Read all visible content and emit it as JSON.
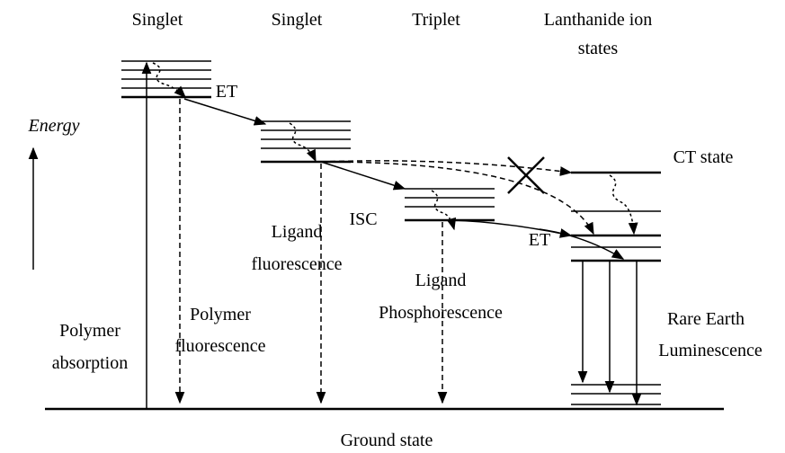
{
  "columns": [
    "Singlet",
    "Singlet",
    "Triplet",
    [
      "Lanthanide ion",
      "states"
    ]
  ],
  "axis_label": "Energy",
  "transitions": {
    "et_1": "ET",
    "isc": "ISC",
    "et_2": "ET"
  },
  "states": {
    "ct": "CT state",
    "ground": "Ground state"
  },
  "processes": {
    "polymer_absorption": [
      "Polymer",
      "absorption"
    ],
    "polymer_fluorescence": [
      "Polymer",
      "fluorescence"
    ],
    "ligand_fluorescence": [
      "Ligand",
      "fluorescence"
    ],
    "ligand_phosphorescence": [
      "Ligand",
      "Phosphorescence"
    ],
    "rare_earth_luminescence": [
      "Rare Earth",
      "Luminescence"
    ]
  }
}
